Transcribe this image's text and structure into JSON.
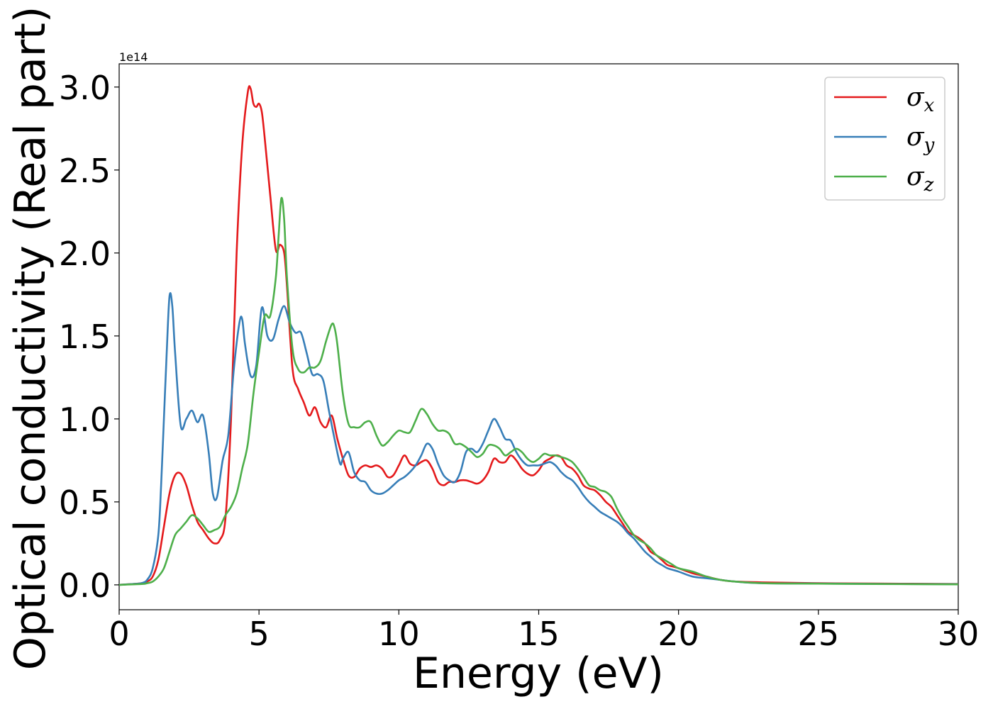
{
  "chart_data": {
    "type": "line",
    "xlabel": "Energy (eV)",
    "ylabel": "Optical conductivity (Real part)",
    "y_offset_text": "1e14",
    "xlim": [
      0,
      30
    ],
    "ylim": [
      -0.15,
      3.14
    ],
    "xticks": [
      0,
      5,
      10,
      15,
      20,
      25,
      30
    ],
    "xtick_labels": [
      "0",
      "5",
      "10",
      "15",
      "20",
      "25",
      "30"
    ],
    "yticks": [
      0.0,
      0.5,
      1.0,
      1.5,
      2.0,
      2.5,
      3.0
    ],
    "ytick_labels": [
      "0.0",
      "0.5",
      "1.0",
      "1.5",
      "2.0",
      "2.5",
      "3.0"
    ],
    "grid": false,
    "legend_position": "top-right",
    "series": [
      {
        "name": "σx",
        "legend_symbol": "σ",
        "legend_subscript": "x",
        "color": "#e41a1c",
        "x": [
          0,
          0.5,
          0.8,
          1.0,
          1.2,
          1.4,
          1.6,
          1.8,
          2.0,
          2.2,
          2.4,
          2.6,
          2.8,
          3.0,
          3.2,
          3.4,
          3.6,
          3.8,
          4.0,
          4.2,
          4.4,
          4.6,
          4.7,
          4.8,
          4.9,
          5.0,
          5.1,
          5.2,
          5.4,
          5.6,
          5.75,
          5.9,
          6.0,
          6.2,
          6.4,
          6.6,
          6.8,
          7.0,
          7.2,
          7.4,
          7.6,
          7.8,
          8.0,
          8.2,
          8.4,
          8.6,
          8.8,
          9.0,
          9.2,
          9.4,
          9.6,
          9.8,
          10.0,
          10.2,
          10.4,
          10.6,
          10.8,
          11.0,
          11.2,
          11.4,
          11.6,
          11.8,
          12.0,
          12.2,
          12.4,
          12.6,
          12.8,
          13.0,
          13.2,
          13.4,
          13.6,
          13.8,
          14.0,
          14.2,
          14.4,
          14.6,
          14.8,
          15.0,
          15.2,
          15.4,
          15.6,
          15.8,
          16.0,
          16.2,
          16.4,
          16.6,
          16.8,
          17.0,
          17.2,
          17.4,
          17.6,
          17.8,
          18.0,
          18.2,
          18.4,
          18.6,
          18.8,
          19.0,
          19.2,
          19.4,
          19.6,
          19.8,
          20.0,
          20.5,
          21.0,
          21.5,
          22.0,
          23.0,
          25.0,
          27.0,
          30.0
        ],
        "values": [
          0.0,
          0.005,
          0.01,
          0.02,
          0.05,
          0.15,
          0.35,
          0.55,
          0.66,
          0.67,
          0.6,
          0.48,
          0.38,
          0.33,
          0.28,
          0.25,
          0.27,
          0.4,
          1.0,
          2.0,
          2.65,
          2.97,
          2.99,
          2.9,
          2.88,
          2.9,
          2.85,
          2.7,
          2.35,
          2.02,
          2.05,
          2.0,
          1.8,
          1.3,
          1.18,
          1.1,
          1.02,
          1.07,
          0.98,
          0.95,
          1.02,
          0.88,
          0.76,
          0.66,
          0.65,
          0.7,
          0.72,
          0.71,
          0.72,
          0.7,
          0.65,
          0.66,
          0.72,
          0.78,
          0.73,
          0.72,
          0.74,
          0.75,
          0.7,
          0.62,
          0.6,
          0.62,
          0.62,
          0.63,
          0.63,
          0.62,
          0.61,
          0.63,
          0.68,
          0.76,
          0.74,
          0.74,
          0.78,
          0.75,
          0.7,
          0.67,
          0.66,
          0.69,
          0.74,
          0.76,
          0.78,
          0.77,
          0.72,
          0.7,
          0.66,
          0.6,
          0.58,
          0.57,
          0.54,
          0.5,
          0.47,
          0.42,
          0.37,
          0.32,
          0.3,
          0.28,
          0.25,
          0.2,
          0.18,
          0.15,
          0.12,
          0.11,
          0.1,
          0.07,
          0.05,
          0.03,
          0.02,
          0.015,
          0.01,
          0.008,
          0.005
        ]
      },
      {
        "name": "σy",
        "legend_symbol": "σ",
        "legend_subscript": "y",
        "color": "#377eb8",
        "x": [
          0,
          0.5,
          0.8,
          1.0,
          1.2,
          1.4,
          1.5,
          1.6,
          1.7,
          1.8,
          1.9,
          2.0,
          2.2,
          2.4,
          2.6,
          2.8,
          3.0,
          3.2,
          3.35,
          3.5,
          3.7,
          3.9,
          4.1,
          4.3,
          4.4,
          4.5,
          4.7,
          4.9,
          5.1,
          5.3,
          5.5,
          5.7,
          5.9,
          6.1,
          6.3,
          6.5,
          6.7,
          6.9,
          7.1,
          7.3,
          7.5,
          7.7,
          7.9,
          8.0,
          8.2,
          8.4,
          8.6,
          8.8,
          9.0,
          9.2,
          9.4,
          9.6,
          9.8,
          10.0,
          10.2,
          10.4,
          10.6,
          10.8,
          11.0,
          11.2,
          11.4,
          11.6,
          11.8,
          12.0,
          12.2,
          12.4,
          12.6,
          12.8,
          13.0,
          13.2,
          13.4,
          13.6,
          13.8,
          14.0,
          14.2,
          14.4,
          14.6,
          14.8,
          15.0,
          15.2,
          15.4,
          15.6,
          15.8,
          16.0,
          16.2,
          16.4,
          16.6,
          16.8,
          17.0,
          17.2,
          17.4,
          17.6,
          17.8,
          18.0,
          18.2,
          18.4,
          18.6,
          18.8,
          19.0,
          19.2,
          19.4,
          19.6,
          19.8,
          20.0,
          20.5,
          21.0,
          21.5,
          22.0,
          23.0,
          25.0,
          27.0,
          30.0
        ],
        "values": [
          0.0,
          0.005,
          0.01,
          0.03,
          0.1,
          0.3,
          0.6,
          1.0,
          1.4,
          1.74,
          1.68,
          1.4,
          0.96,
          1.0,
          1.05,
          0.98,
          1.02,
          0.8,
          0.55,
          0.53,
          0.75,
          0.9,
          1.3,
          1.58,
          1.6,
          1.45,
          1.26,
          1.32,
          1.67,
          1.5,
          1.48,
          1.6,
          1.68,
          1.58,
          1.52,
          1.52,
          1.4,
          1.27,
          1.27,
          1.23,
          1.05,
          0.88,
          0.73,
          0.76,
          0.8,
          0.68,
          0.63,
          0.62,
          0.57,
          0.55,
          0.55,
          0.57,
          0.6,
          0.63,
          0.65,
          0.68,
          0.72,
          0.78,
          0.85,
          0.82,
          0.73,
          0.66,
          0.63,
          0.62,
          0.68,
          0.8,
          0.82,
          0.8,
          0.85,
          0.93,
          1.0,
          0.95,
          0.88,
          0.87,
          0.8,
          0.75,
          0.72,
          0.72,
          0.72,
          0.73,
          0.74,
          0.72,
          0.68,
          0.65,
          0.63,
          0.59,
          0.54,
          0.5,
          0.47,
          0.44,
          0.42,
          0.4,
          0.38,
          0.35,
          0.31,
          0.28,
          0.24,
          0.2,
          0.17,
          0.14,
          0.12,
          0.1,
          0.09,
          0.08,
          0.05,
          0.04,
          0.03,
          0.02,
          0.01,
          0.008,
          0.006,
          0.004
        ]
      },
      {
        "name": "σz",
        "legend_symbol": "σ",
        "legend_subscript": "z",
        "color": "#4daf4a",
        "x": [
          0,
          0.8,
          1.0,
          1.2,
          1.4,
          1.6,
          1.8,
          2.0,
          2.2,
          2.4,
          2.6,
          2.8,
          3.0,
          3.2,
          3.4,
          3.6,
          3.8,
          4.0,
          4.2,
          4.4,
          4.6,
          4.8,
          5.0,
          5.2,
          5.4,
          5.6,
          5.7,
          5.8,
          5.9,
          6.0,
          6.2,
          6.4,
          6.6,
          6.8,
          7.0,
          7.2,
          7.4,
          7.6,
          7.7,
          7.8,
          8.0,
          8.2,
          8.4,
          8.6,
          8.8,
          9.0,
          9.2,
          9.4,
          9.6,
          9.8,
          10.0,
          10.2,
          10.4,
          10.6,
          10.8,
          11.0,
          11.2,
          11.4,
          11.6,
          11.8,
          12.0,
          12.2,
          12.4,
          12.6,
          12.8,
          13.0,
          13.2,
          13.4,
          13.6,
          13.8,
          14.0,
          14.2,
          14.4,
          14.6,
          14.8,
          15.0,
          15.2,
          15.4,
          15.6,
          15.8,
          16.0,
          16.2,
          16.4,
          16.6,
          16.8,
          17.0,
          17.2,
          17.4,
          17.6,
          17.8,
          18.0,
          18.2,
          18.4,
          18.6,
          18.8,
          19.0,
          19.2,
          19.4,
          19.6,
          19.8,
          20.0,
          20.5,
          21.0,
          21.5,
          22.0,
          23.0,
          25.0,
          27.0,
          30.0
        ],
        "values": [
          0.0,
          0.005,
          0.01,
          0.02,
          0.05,
          0.1,
          0.2,
          0.3,
          0.34,
          0.38,
          0.42,
          0.4,
          0.36,
          0.32,
          0.33,
          0.35,
          0.42,
          0.47,
          0.55,
          0.7,
          0.85,
          1.15,
          1.4,
          1.62,
          1.62,
          1.85,
          2.1,
          2.33,
          2.2,
          1.85,
          1.42,
          1.3,
          1.28,
          1.31,
          1.31,
          1.35,
          1.47,
          1.57,
          1.55,
          1.45,
          1.15,
          0.97,
          0.95,
          0.95,
          0.98,
          0.98,
          0.9,
          0.84,
          0.86,
          0.9,
          0.93,
          0.92,
          0.92,
          0.99,
          1.06,
          1.03,
          0.97,
          0.93,
          0.93,
          0.91,
          0.85,
          0.85,
          0.83,
          0.8,
          0.77,
          0.79,
          0.84,
          0.84,
          0.82,
          0.78,
          0.8,
          0.82,
          0.8,
          0.76,
          0.74,
          0.76,
          0.79,
          0.78,
          0.78,
          0.77,
          0.76,
          0.74,
          0.7,
          0.65,
          0.6,
          0.59,
          0.57,
          0.56,
          0.53,
          0.46,
          0.4,
          0.35,
          0.3,
          0.27,
          0.25,
          0.22,
          0.18,
          0.16,
          0.14,
          0.12,
          0.1,
          0.08,
          0.05,
          0.03,
          0.02,
          0.01,
          0.007,
          0.005,
          0.003
        ]
      }
    ]
  }
}
